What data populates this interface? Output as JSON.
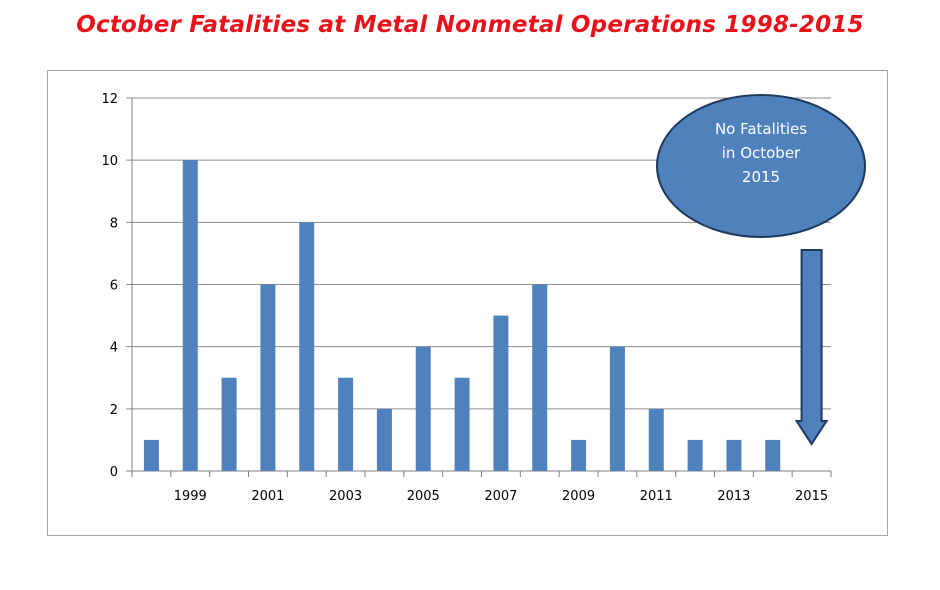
{
  "title": "October Fatalities at Metal Nonmetal Operations 1998-2015",
  "chart_data": {
    "type": "bar",
    "title": "October Fatalities at Metal Nonmetal Operations 1998-2015",
    "categories": [
      "1998",
      "1999",
      "2000",
      "2001",
      "2002",
      "2003",
      "2004",
      "2005",
      "2006",
      "2007",
      "2008",
      "2009",
      "2010",
      "2011",
      "2012",
      "2013",
      "2014",
      "2015"
    ],
    "values": [
      1,
      10,
      3,
      6,
      8,
      3,
      2,
      4,
      3,
      5,
      6,
      1,
      4,
      2,
      1,
      1,
      1,
      0
    ],
    "x_tick_labels": [
      "1999",
      "2001",
      "2003",
      "2005",
      "2007",
      "2009",
      "2011",
      "2013",
      "2015"
    ],
    "y_ticks": [
      0,
      2,
      4,
      6,
      8,
      10,
      12
    ],
    "ylim": [
      0,
      12
    ],
    "xlabel": "",
    "ylabel": "",
    "grid": true,
    "bar_color": "#4f81bd",
    "annotation": {
      "lines": [
        "No Fatalities",
        "in October",
        "2015"
      ],
      "fill": "#4f81bd",
      "stroke": "#1f3a5f"
    }
  }
}
